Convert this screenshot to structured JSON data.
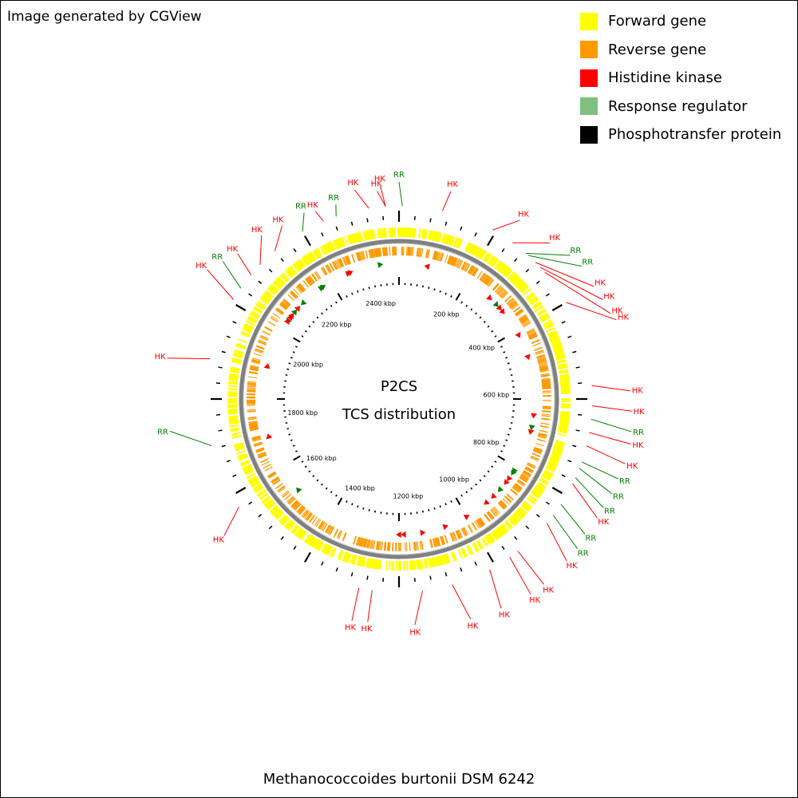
{
  "credit": "Image generated by CGView",
  "legend": [
    {
      "label": "Forward gene",
      "color": "#ffff00"
    },
    {
      "label": "Reverse gene",
      "color": "#ff9900"
    },
    {
      "label": "Histidine kinase",
      "color": "#ff0000"
    },
    {
      "label": "Response regulator",
      "color": "#7fbf7f"
    },
    {
      "label": "Phosphotransfer protein",
      "color": "#000000"
    }
  ],
  "center": {
    "title": "P2CS",
    "subtitle": "TCS distribution"
  },
  "species": "Methanococcoides burtonii DSM 6242",
  "colors": {
    "hk": "#ff0000",
    "rr": "#008000",
    "backbone": "#808080"
  },
  "kbp_labels": [
    "200 kbp",
    "400 kbp",
    "600 kbp",
    "800 kbp",
    "1000 kbp",
    "1200 kbp",
    "1400 kbp",
    "1600 kbp",
    "1800 kbp",
    "2000 kbp",
    "2200 kbp",
    "2400 kbp"
  ],
  "callouts": [
    {
      "label": "HK",
      "type": "hk"
    },
    {
      "label": "HK",
      "type": "hk"
    },
    {
      "label": "RR",
      "type": "rr"
    },
    {
      "label": "HK",
      "type": "hk"
    },
    {
      "label": "HK",
      "type": "hk"
    },
    {
      "label": "HK",
      "type": "hk"
    },
    {
      "label": "RR",
      "type": "rr"
    },
    {
      "label": "RR",
      "type": "rr"
    },
    {
      "label": "HK",
      "type": "hk"
    },
    {
      "label": "HK",
      "type": "hk"
    },
    {
      "label": "HK",
      "type": "hk"
    },
    {
      "label": "HK",
      "type": "hk"
    },
    {
      "label": "HK",
      "type": "hk"
    },
    {
      "label": "HK",
      "type": "hk"
    },
    {
      "label": "RR",
      "type": "rr"
    },
    {
      "label": "HK",
      "type": "hk"
    },
    {
      "label": "HK",
      "type": "hk"
    },
    {
      "label": "RR",
      "type": "rr"
    },
    {
      "label": "RR",
      "type": "rr"
    },
    {
      "label": "RR",
      "type": "rr"
    },
    {
      "label": "HK",
      "type": "hk"
    },
    {
      "label": "RR",
      "type": "rr"
    },
    {
      "label": "RR",
      "type": "rr"
    },
    {
      "label": "HK",
      "type": "hk"
    },
    {
      "label": "HK",
      "type": "hk"
    },
    {
      "label": "HK",
      "type": "hk"
    },
    {
      "label": "HK",
      "type": "hk"
    },
    {
      "label": "HK",
      "type": "hk"
    },
    {
      "label": "HK",
      "type": "hk"
    },
    {
      "label": "HK",
      "type": "hk"
    },
    {
      "label": "HK",
      "type": "hk"
    },
    {
      "label": "HK",
      "type": "hk"
    },
    {
      "label": "RR",
      "type": "rr"
    },
    {
      "label": "HK",
      "type": "hk"
    },
    {
      "label": "HK",
      "type": "hk"
    },
    {
      "label": "RR",
      "type": "rr"
    },
    {
      "label": "HK",
      "type": "hk"
    },
    {
      "label": "HK",
      "type": "hk"
    },
    {
      "label": "HK",
      "type": "hk"
    },
    {
      "label": "RR",
      "type": "rr"
    },
    {
      "label": "HK",
      "type": "hk"
    },
    {
      "label": "RR",
      "type": "rr"
    },
    {
      "label": "HK",
      "type": "hk"
    }
  ]
}
